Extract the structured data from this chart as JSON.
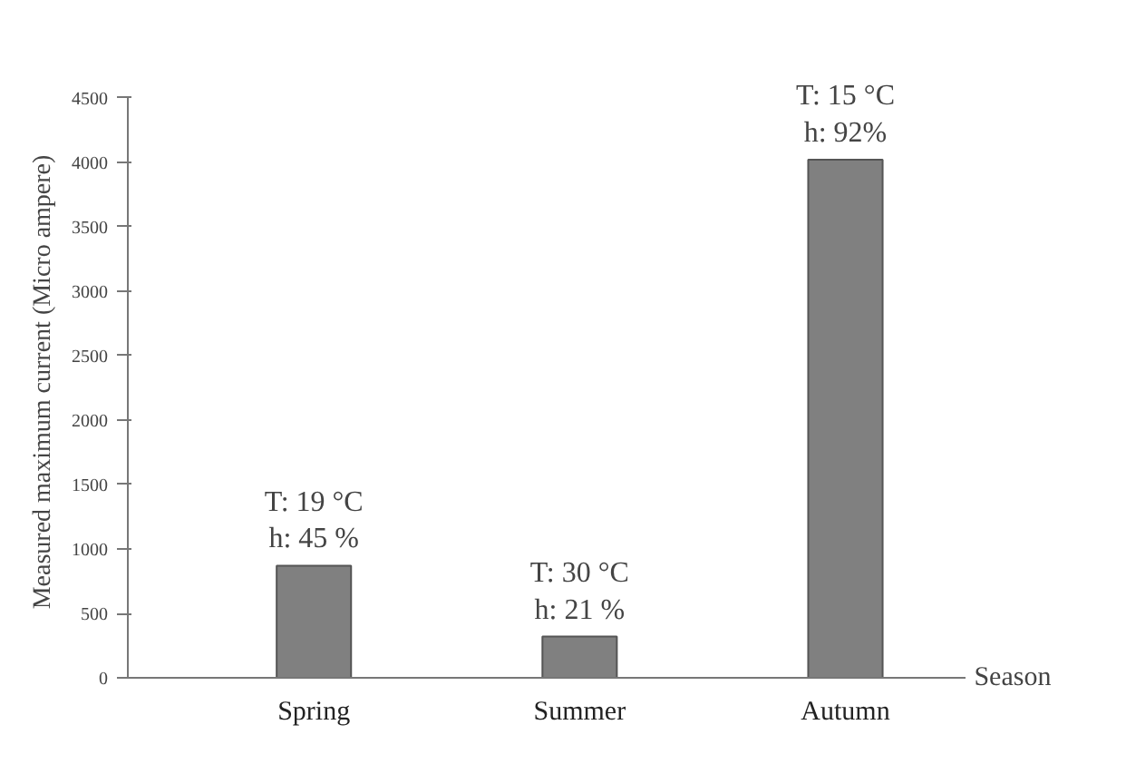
{
  "chart_data": {
    "type": "bar",
    "xlabel": "Season",
    "ylabel": "Measured maximum current (Micro ampere)",
    "categories": [
      "Spring",
      "Summer",
      "Autumn"
    ],
    "values": [
      870,
      320,
      4020
    ],
    "color": "#808080",
    "ylim": [
      0,
      4500
    ],
    "yticks": [
      0,
      500,
      1000,
      1500,
      2000,
      2500,
      3000,
      3500,
      4000,
      4500
    ],
    "grid": false,
    "annotations": [
      {
        "text": "T: 19 °C\nh: 45 %",
        "x": "Spring",
        "y": 870
      },
      {
        "text": "T: 30 °C\nh: 21 %",
        "x": "Summer",
        "y": 320
      },
      {
        "text": "T: 15 °C\nh: 92%",
        "x": "Autumn",
        "y": 4020
      }
    ]
  }
}
